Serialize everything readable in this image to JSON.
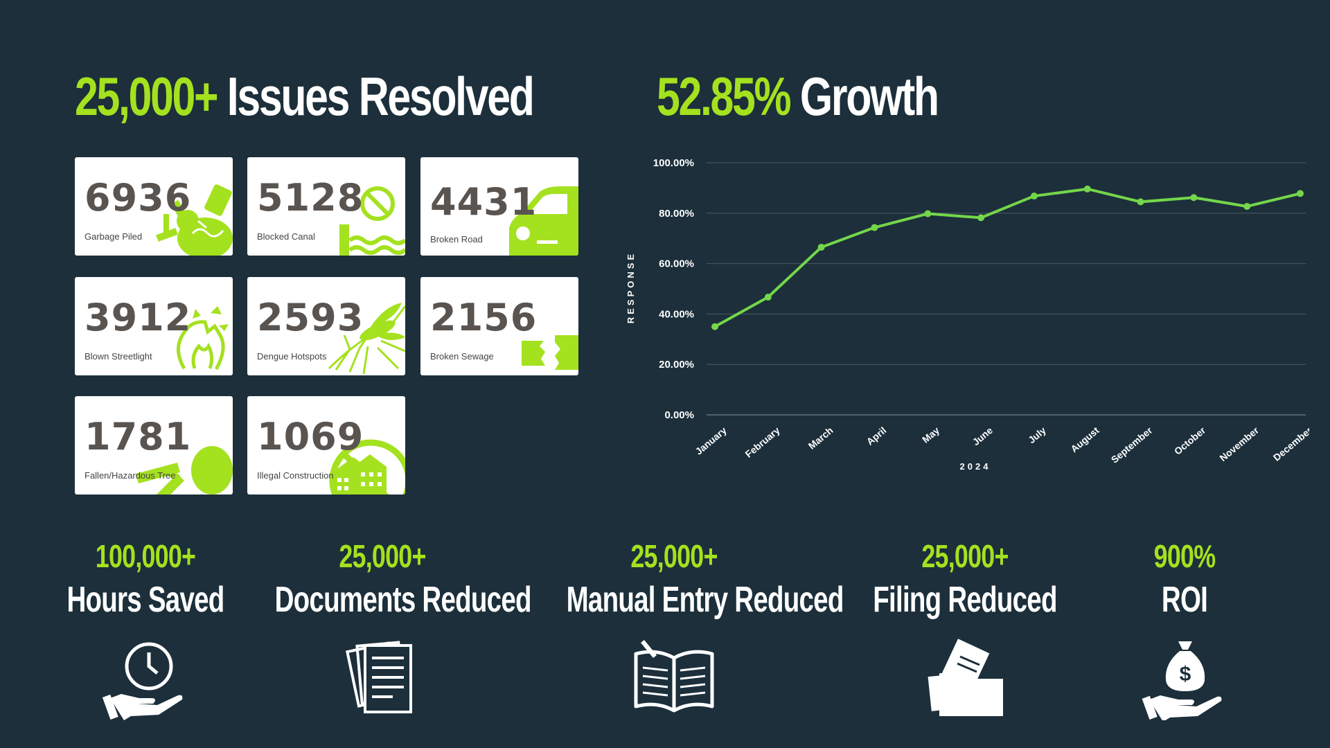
{
  "issues": {
    "highlight": "25,000+",
    "text": "Issues Resolved"
  },
  "growth": {
    "highlight": "52.85%",
    "text": "Growth"
  },
  "cards": [
    {
      "value": "6936",
      "label": "Garbage Piled",
      "icon": "garbage-icon"
    },
    {
      "value": "5128",
      "label": "Blocked Canal",
      "icon": "blocked-canal-icon"
    },
    {
      "value": "4431",
      "label": "Broken Road",
      "icon": "car-icon"
    },
    {
      "value": "3912",
      "label": "Blown Streetlight",
      "icon": "broken-bulb-icon"
    },
    {
      "value": "2593",
      "label": "Dengue Hotspots",
      "icon": "mosquito-icon"
    },
    {
      "value": "2156",
      "label": "Broken Sewage",
      "icon": "broken-pipe-icon"
    },
    {
      "value": "1781",
      "label": "Fallen/Hazardous Tree",
      "icon": "fallen-tree-icon"
    },
    {
      "value": "1069",
      "label": "Illegal Construction",
      "icon": "prohibited-building-icon"
    }
  ],
  "chart_data": {
    "type": "line",
    "categories": [
      "January",
      "February",
      "March",
      "April",
      "May",
      "June",
      "July",
      "August",
      "September",
      "October",
      "November",
      "December"
    ],
    "series": [
      {
        "values": [
          35.0,
          46.7,
          66.5,
          74.3,
          79.8,
          78.2,
          86.8,
          89.6,
          84.5,
          86.2,
          82.7,
          87.8
        ]
      }
    ],
    "ylim": [
      0,
      100
    ],
    "yticks": [
      "0.00%",
      "20.00%",
      "40.00%",
      "60.00%",
      "80.00%",
      "100.00%"
    ],
    "ylabel": "RESPONSE",
    "xlabel": "2024",
    "grid": true,
    "line_color": "#74d64a"
  },
  "stats": [
    {
      "value": "100,000+",
      "label": "Hours Saved",
      "icon": "clock-hand-icon"
    },
    {
      "value": "25,000+",
      "label": "Documents Reduced",
      "icon": "documents-icon"
    },
    {
      "value": "25,000+",
      "label": "Manual Entry Reduced",
      "icon": "open-book-icon"
    },
    {
      "value": "25,000+",
      "label": "Filing Reduced",
      "icon": "folder-icon"
    },
    {
      "value": "900%",
      "label": "ROI",
      "icon": "money-bag-hand-icon"
    }
  ],
  "colors": {
    "background": "#1c2f3b",
    "accent": "#a4e11f",
    "card": "#ffffff",
    "number": "#5a5450"
  }
}
